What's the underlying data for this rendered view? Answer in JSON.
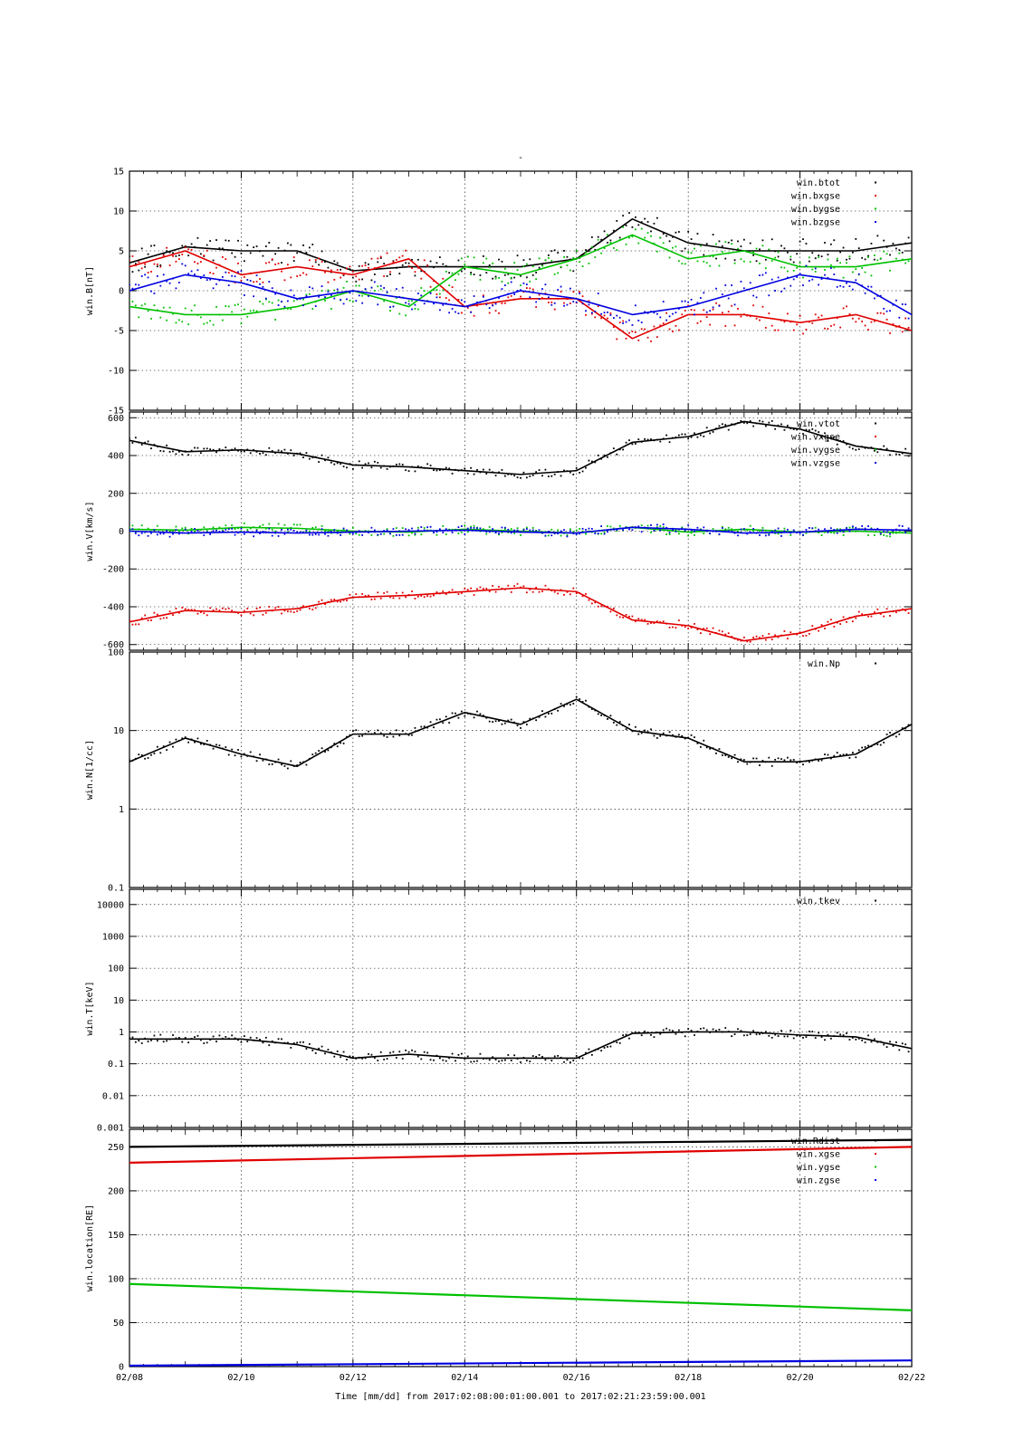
{
  "figure": {
    "title": "-",
    "xlabel": "Time [mm/dd]  from 2017:02:08:00:01:00.001  to  2017:02:21:23:59:00.001",
    "x_ticks": [
      "02/08",
      "02/10",
      "02/12",
      "02/14",
      "02/16",
      "02/18",
      "02/20",
      "02/22"
    ]
  },
  "chart_data": [
    {
      "type": "scatter",
      "ylabel": "win.B[nT]",
      "ylim": [
        -15,
        15
      ],
      "y_ticks": [
        "15",
        "10",
        "5",
        "0",
        "-5",
        "-10",
        "-15"
      ],
      "y_tick_values": [
        15,
        10,
        5,
        0,
        -5,
        -10,
        -15
      ],
      "grid": true,
      "legend_position": "top-right",
      "x": [
        "02/08",
        "02/09",
        "02/10",
        "02/11",
        "02/12",
        "02/13",
        "02/14",
        "02/15",
        "02/16",
        "02/17",
        "02/18",
        "02/19",
        "02/20",
        "02/21",
        "02/22"
      ],
      "series": [
        {
          "name": "win.btot",
          "color": "#000000",
          "values": [
            3.5,
            5.5,
            5,
            5,
            2.5,
            3,
            3,
            3,
            4,
            9,
            6,
            5,
            5,
            5,
            6
          ]
        },
        {
          "name": "win.bxgse",
          "color": "#e00000",
          "values": [
            3,
            5,
            2,
            3,
            2,
            4,
            -2,
            -1,
            -1,
            -6,
            -3,
            -3,
            -4,
            -3,
            -5
          ]
        },
        {
          "name": "win.bygse",
          "color": "#00c000",
          "values": [
            -2,
            -3,
            -3,
            -2,
            0,
            -2,
            3,
            2,
            4,
            7,
            4,
            5,
            3,
            3,
            4
          ]
        },
        {
          "name": "win.bzgse",
          "color": "#0000e0",
          "values": [
            0,
            2,
            1,
            -1,
            0,
            -1,
            -2,
            0,
            -1,
            -3,
            -2,
            0,
            2,
            1,
            -3
          ]
        }
      ]
    },
    {
      "type": "scatter",
      "ylabel": "win.V[km/s]",
      "ylim": [
        -630,
        630
      ],
      "y_ticks": [
        "600",
        "400",
        "200",
        "0",
        "-200",
        "-400",
        "-600"
      ],
      "y_tick_values": [
        600,
        400,
        200,
        0,
        -200,
        -400,
        -600
      ],
      "grid": true,
      "legend_position": "top-right",
      "x": [
        "02/08",
        "02/09",
        "02/10",
        "02/11",
        "02/12",
        "02/13",
        "02/14",
        "02/15",
        "02/16",
        "02/17",
        "02/18",
        "02/19",
        "02/20",
        "02/21",
        "02/22"
      ],
      "series": [
        {
          "name": "win.vtot",
          "color": "#000000",
          "values": [
            480,
            420,
            430,
            410,
            350,
            340,
            320,
            300,
            320,
            470,
            500,
            580,
            540,
            450,
            410
          ]
        },
        {
          "name": "win.vxgse",
          "color": "#e00000",
          "values": [
            -480,
            -420,
            -430,
            -410,
            -350,
            -340,
            -320,
            -300,
            -320,
            -470,
            -500,
            -580,
            -540,
            -450,
            -410
          ]
        },
        {
          "name": "win.vygse",
          "color": "#00c000",
          "values": [
            10,
            5,
            20,
            15,
            0,
            -5,
            10,
            0,
            -10,
            20,
            -5,
            10,
            -5,
            0,
            -10
          ]
        },
        {
          "name": "win.vzgse",
          "color": "#0000e0",
          "values": [
            0,
            -10,
            -5,
            -10,
            -5,
            0,
            5,
            -5,
            -10,
            20,
            10,
            -10,
            -5,
            10,
            5
          ]
        }
      ]
    },
    {
      "type": "scatter",
      "ylabel": "win.N[1/cc]",
      "scale": "log",
      "ylim": [
        0.1,
        100
      ],
      "y_ticks": [
        "100",
        "10",
        "1",
        "0.1"
      ],
      "y_tick_values": [
        100,
        10,
        1,
        0.1
      ],
      "grid": true,
      "legend_position": "top-right",
      "x": [
        "02/08",
        "02/09",
        "02/10",
        "02/11",
        "02/12",
        "02/13",
        "02/14",
        "02/15",
        "02/16",
        "02/17",
        "02/18",
        "02/19",
        "02/20",
        "02/21",
        "02/22"
      ],
      "series": [
        {
          "name": "win.Np",
          "color": "#000000",
          "values": [
            4,
            8,
            5,
            3.5,
            9,
            9,
            17,
            12,
            25,
            10,
            8,
            4,
            4,
            5,
            12
          ]
        }
      ]
    },
    {
      "type": "scatter",
      "ylabel": "win.T[keV]",
      "scale": "log",
      "ylim": [
        0.001,
        30000
      ],
      "y_ticks": [
        "10000",
        "1000",
        "100",
        "10",
        "1",
        "0.1",
        "0.01",
        "0.001"
      ],
      "y_tick_values": [
        10000,
        1000,
        100,
        10,
        1,
        0.1,
        0.01,
        0.001
      ],
      "grid": true,
      "legend_position": "top-right",
      "x": [
        "02/08",
        "02/09",
        "02/10",
        "02/11",
        "02/12",
        "02/13",
        "02/14",
        "02/15",
        "02/16",
        "02/17",
        "02/18",
        "02/19",
        "02/20",
        "02/21",
        "02/22"
      ],
      "series": [
        {
          "name": "win.tkev",
          "color": "#000000",
          "values": [
            0.6,
            0.6,
            0.6,
            0.4,
            0.15,
            0.2,
            0.15,
            0.15,
            0.15,
            0.9,
            1,
            1,
            0.8,
            0.7,
            0.3
          ]
        }
      ]
    },
    {
      "type": "line",
      "ylabel": "win.location[RE]",
      "ylim": [
        0,
        270
      ],
      "y_ticks": [
        "250",
        "200",
        "150",
        "100",
        "50",
        "0"
      ],
      "y_tick_values": [
        250,
        200,
        150,
        100,
        50,
        0
      ],
      "grid": true,
      "legend_position": "top-right",
      "x": [
        "02/08",
        "02/22"
      ],
      "series": [
        {
          "name": "win.Rdist",
          "color": "#000000",
          "values": [
            250,
            258
          ]
        },
        {
          "name": "win.xgse",
          "color": "#e00000",
          "values": [
            232,
            250
          ]
        },
        {
          "name": "win.ygse",
          "color": "#00c000",
          "values": [
            94,
            64
          ]
        },
        {
          "name": "win.zgse",
          "color": "#0000e0",
          "values": [
            1,
            7
          ]
        }
      ]
    }
  ]
}
